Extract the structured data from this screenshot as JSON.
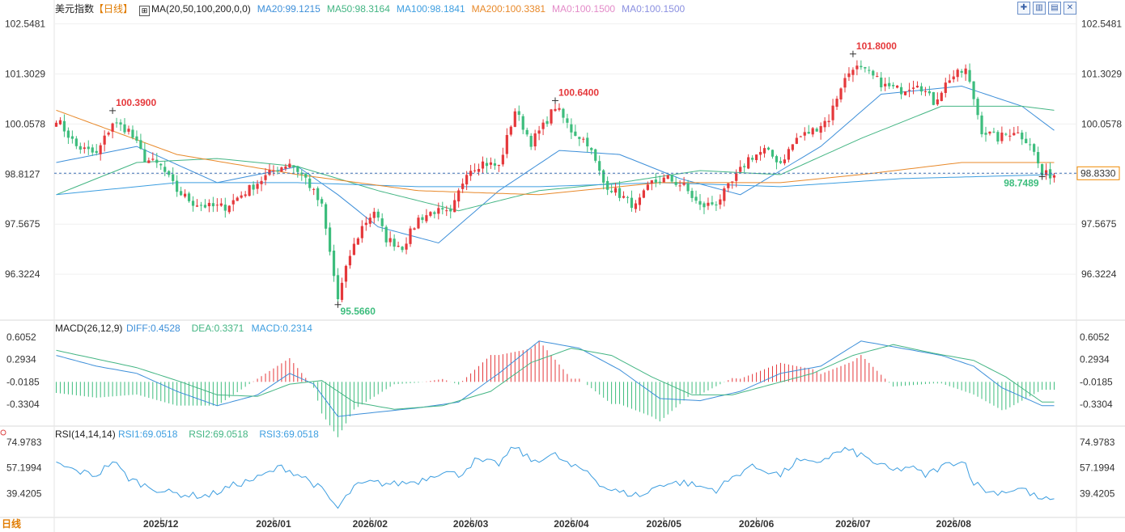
{
  "header": {
    "name": "美元指数",
    "period_tag": "【日线】",
    "ma_icon": "chart-legend-icon",
    "ma_label": "MA(20,50,100,200,0,0)",
    "ma_values": [
      {
        "text": "MA20:99.1215",
        "color": "#3d8fd9"
      },
      {
        "text": "MA50:98.3164",
        "color": "#43b583"
      },
      {
        "text": "MA100:98.1841",
        "color": "#3d9ee0"
      },
      {
        "text": "MA200:100.3381",
        "color": "#e8892a"
      },
      {
        "text": "MA0:100.1500",
        "color": "#e38ac8"
      },
      {
        "text": "MA0:100.1500",
        "color": "#8a8fe0"
      }
    ]
  },
  "toolbar": {
    "icons": [
      "crosshair-icon",
      "candle-type-icon",
      "layout-icon",
      "close-icon"
    ],
    "glyphs": [
      "✚",
      "▥",
      "▤",
      "✕"
    ]
  },
  "period_label": "日线",
  "colors": {
    "up": "#e5383b",
    "down": "#3dbd7d",
    "ma20": "#3d8fd9",
    "ma50": "#43b583",
    "ma100": "#3d9ee0",
    "ma200": "#e8892a",
    "diff": "#3d8fd9",
    "dea": "#43b583",
    "rsi": "#3d9ee0",
    "current": "#f08a00"
  },
  "chart_data": [
    {
      "type": "candlestick",
      "y_ticks": [
        "102.5481",
        "101.3029",
        "100.0578",
        "98.8127",
        "97.5675",
        "96.3224"
      ],
      "ylim": [
        95.3,
        102.7
      ],
      "current_price": "98.8330",
      "annotations": [
        {
          "text": "100.3900",
          "value": 100.39,
          "index": 14,
          "kind": "high"
        },
        {
          "text": "100.6400",
          "value": 100.64,
          "index": 124,
          "kind": "high"
        },
        {
          "text": "101.8000",
          "value": 101.8,
          "index": 198,
          "kind": "high"
        },
        {
          "text": "95.5660",
          "value": 95.566,
          "index": 70,
          "kind": "low"
        },
        {
          "text": "98.7489",
          "value": 98.7489,
          "index": 245,
          "kind": "low"
        }
      ],
      "close_path": [
        [
          0,
          100.2
        ],
        [
          5,
          99.5
        ],
        [
          10,
          99.3
        ],
        [
          14,
          100.1
        ],
        [
          18,
          99.9
        ],
        [
          22,
          99.2
        ],
        [
          26,
          99.0
        ],
        [
          30,
          98.4
        ],
        [
          34,
          98.1
        ],
        [
          38,
          98.0
        ],
        [
          42,
          98.0
        ],
        [
          46,
          98.3
        ],
        [
          50,
          98.6
        ],
        [
          54,
          98.9
        ],
        [
          58,
          99.1
        ],
        [
          62,
          98.7
        ],
        [
          66,
          98.0
        ],
        [
          70,
          95.7
        ],
        [
          73,
          96.8
        ],
        [
          76,
          97.5
        ],
        [
          79,
          97.9
        ],
        [
          82,
          97.2
        ],
        [
          86,
          97.0
        ],
        [
          90,
          97.7
        ],
        [
          94,
          97.9
        ],
        [
          98,
          97.8
        ],
        [
          102,
          98.9
        ],
        [
          106,
          99.1
        ],
        [
          110,
          99.0
        ],
        [
          114,
          100.4
        ],
        [
          118,
          99.6
        ],
        [
          121,
          100.0
        ],
        [
          124,
          100.5
        ],
        [
          128,
          99.9
        ],
        [
          132,
          99.6
        ],
        [
          136,
          98.6
        ],
        [
          140,
          98.3
        ],
        [
          144,
          98.0
        ],
        [
          148,
          98.6
        ],
        [
          152,
          98.7
        ],
        [
          156,
          98.5
        ],
        [
          160,
          98.0
        ],
        [
          164,
          98.1
        ],
        [
          168,
          98.6
        ],
        [
          172,
          99.2
        ],
        [
          176,
          99.4
        ],
        [
          180,
          99.1
        ],
        [
          184,
          99.7
        ],
        [
          188,
          99.9
        ],
        [
          192,
          100.2
        ],
        [
          195,
          101.0
        ],
        [
          198,
          101.5
        ],
        [
          202,
          101.3
        ],
        [
          206,
          101.0
        ],
        [
          210,
          100.9
        ],
        [
          214,
          101.1
        ],
        [
          218,
          100.6
        ],
        [
          222,
          101.2
        ],
        [
          226,
          101.4
        ],
        [
          228,
          100.7
        ],
        [
          230,
          99.9
        ],
        [
          234,
          99.7
        ],
        [
          238,
          99.9
        ],
        [
          242,
          99.6
        ],
        [
          245,
          98.8
        ]
      ],
      "ma20_path": [
        [
          0,
          99.1
        ],
        [
          20,
          99.5
        ],
        [
          40,
          98.6
        ],
        [
          60,
          99.0
        ],
        [
          70,
          98.3
        ],
        [
          80,
          97.5
        ],
        [
          95,
          97.1
        ],
        [
          110,
          98.4
        ],
        [
          125,
          99.4
        ],
        [
          140,
          99.3
        ],
        [
          155,
          98.7
        ],
        [
          170,
          98.3
        ],
        [
          190,
          99.5
        ],
        [
          205,
          100.8
        ],
        [
          225,
          101.0
        ],
        [
          240,
          100.5
        ],
        [
          248,
          99.9
        ]
      ],
      "ma50_path": [
        [
          0,
          98.3
        ],
        [
          20,
          99.1
        ],
        [
          40,
          99.2
        ],
        [
          60,
          99.0
        ],
        [
          80,
          98.4
        ],
        [
          100,
          97.9
        ],
        [
          120,
          98.4
        ],
        [
          140,
          98.6
        ],
        [
          160,
          98.9
        ],
        [
          180,
          98.8
        ],
        [
          200,
          99.7
        ],
        [
          220,
          100.5
        ],
        [
          240,
          100.5
        ],
        [
          248,
          100.4
        ]
      ],
      "ma100_path": [
        [
          0,
          98.3
        ],
        [
          30,
          98.6
        ],
        [
          60,
          98.6
        ],
        [
          90,
          98.5
        ],
        [
          120,
          98.5
        ],
        [
          150,
          98.6
        ],
        [
          180,
          98.5
        ],
        [
          210,
          98.7
        ],
        [
          248,
          98.8
        ]
      ],
      "ma200_path": [
        [
          0,
          100.4
        ],
        [
          30,
          99.3
        ],
        [
          60,
          98.8
        ],
        [
          90,
          98.4
        ],
        [
          120,
          98.3
        ],
        [
          150,
          98.6
        ],
        [
          180,
          98.6
        ],
        [
          200,
          98.8
        ],
        [
          225,
          99.1
        ],
        [
          248,
          99.1
        ]
      ]
    },
    {
      "type": "macd",
      "title": "MACD(26,12,9)",
      "legend": [
        {
          "text": "DIFF:0.4528",
          "color": "#3d8fd9"
        },
        {
          "text": "DEA:0.3371",
          "color": "#43b583"
        },
        {
          "text": "MACD:0.2314",
          "color": "#3d9ee0"
        }
      ],
      "y_ticks": [
        "0.6052",
        "0.2934",
        "-0.0185",
        "-0.3304"
      ],
      "ylim": [
        -0.6,
        0.75
      ],
      "diff_path": [
        [
          0,
          0.35
        ],
        [
          10,
          0.2
        ],
        [
          20,
          0.1
        ],
        [
          30,
          -0.15
        ],
        [
          40,
          -0.35
        ],
        [
          50,
          -0.2
        ],
        [
          58,
          0.1
        ],
        [
          64,
          -0.05
        ],
        [
          70,
          -0.5
        ],
        [
          78,
          -0.45
        ],
        [
          90,
          -0.38
        ],
        [
          100,
          -0.3
        ],
        [
          110,
          0.1
        ],
        [
          120,
          0.55
        ],
        [
          130,
          0.45
        ],
        [
          140,
          0.15
        ],
        [
          150,
          -0.25
        ],
        [
          160,
          -0.28
        ],
        [
          170,
          -0.15
        ],
        [
          180,
          0.1
        ],
        [
          190,
          0.2
        ],
        [
          200,
          0.55
        ],
        [
          210,
          0.45
        ],
        [
          220,
          0.35
        ],
        [
          228,
          0.2
        ],
        [
          235,
          -0.1
        ],
        [
          245,
          -0.35
        ]
      ],
      "dea_path": [
        [
          0,
          0.42
        ],
        [
          10,
          0.3
        ],
        [
          20,
          0.18
        ],
        [
          30,
          0.0
        ],
        [
          40,
          -0.2
        ],
        [
          50,
          -0.22
        ],
        [
          58,
          -0.05
        ],
        [
          66,
          0.0
        ],
        [
          74,
          -0.3
        ],
        [
          84,
          -0.4
        ],
        [
          96,
          -0.35
        ],
        [
          108,
          -0.15
        ],
        [
          118,
          0.25
        ],
        [
          128,
          0.45
        ],
        [
          138,
          0.35
        ],
        [
          148,
          0.05
        ],
        [
          158,
          -0.2
        ],
        [
          168,
          -0.2
        ],
        [
          178,
          -0.05
        ],
        [
          188,
          0.1
        ],
        [
          198,
          0.35
        ],
        [
          208,
          0.5
        ],
        [
          218,
          0.38
        ],
        [
          228,
          0.28
        ],
        [
          236,
          0.05
        ],
        [
          245,
          -0.3
        ]
      ]
    },
    {
      "type": "rsi",
      "title": "RSI(14,14,14)",
      "legend": [
        {
          "text": "RSI1:69.0518",
          "color": "#3d9ee0"
        },
        {
          "text": "RSI2:69.0518",
          "color": "#43b583"
        },
        {
          "text": "RSI3:69.0518",
          "color": "#3d9ee0"
        }
      ],
      "y_ticks": [
        "74.9783",
        "57.1994",
        "39.4205"
      ],
      "ylim": [
        25,
        80
      ],
      "rsi_path": [
        [
          0,
          60
        ],
        [
          5,
          55
        ],
        [
          10,
          52
        ],
        [
          14,
          62
        ],
        [
          18,
          50
        ],
        [
          22,
          45
        ],
        [
          28,
          40
        ],
        [
          34,
          38
        ],
        [
          38,
          38
        ],
        [
          44,
          45
        ],
        [
          50,
          50
        ],
        [
          56,
          58
        ],
        [
          62,
          50
        ],
        [
          66,
          42
        ],
        [
          70,
          29
        ],
        [
          74,
          44
        ],
        [
          78,
          47
        ],
        [
          84,
          46
        ],
        [
          90,
          48
        ],
        [
          96,
          55
        ],
        [
          100,
          52
        ],
        [
          104,
          62
        ],
        [
          110,
          60
        ],
        [
          114,
          72
        ],
        [
          118,
          62
        ],
        [
          124,
          66
        ],
        [
          128,
          58
        ],
        [
          132,
          55
        ],
        [
          136,
          44
        ],
        [
          140,
          40
        ],
        [
          146,
          38
        ],
        [
          150,
          46
        ],
        [
          156,
          47
        ],
        [
          160,
          44
        ],
        [
          164,
          42
        ],
        [
          168,
          50
        ],
        [
          172,
          58
        ],
        [
          176,
          56
        ],
        [
          180,
          52
        ],
        [
          184,
          62
        ],
        [
          188,
          60
        ],
        [
          192,
          65
        ],
        [
          196,
          70
        ],
        [
          200,
          66
        ],
        [
          204,
          60
        ],
        [
          208,
          55
        ],
        [
          212,
          58
        ],
        [
          216,
          52
        ],
        [
          220,
          58
        ],
        [
          224,
          62
        ],
        [
          226,
          60
        ],
        [
          228,
          47
        ],
        [
          232,
          40
        ],
        [
          236,
          41
        ],
        [
          240,
          43
        ],
        [
          244,
          36
        ],
        [
          248,
          34
        ]
      ]
    }
  ],
  "x_labels": [
    {
      "text": "2025/12",
      "index": 26
    },
    {
      "text": "2026/01",
      "index": 54
    },
    {
      "text": "2026/02",
      "index": 78
    },
    {
      "text": "2026/03",
      "index": 103
    },
    {
      "text": "2026/04",
      "index": 128
    },
    {
      "text": "2026/05",
      "index": 151
    },
    {
      "text": "2026/06",
      "index": 174
    },
    {
      "text": "2026/07",
      "index": 198
    },
    {
      "text": "2026/08",
      "index": 223
    }
  ]
}
